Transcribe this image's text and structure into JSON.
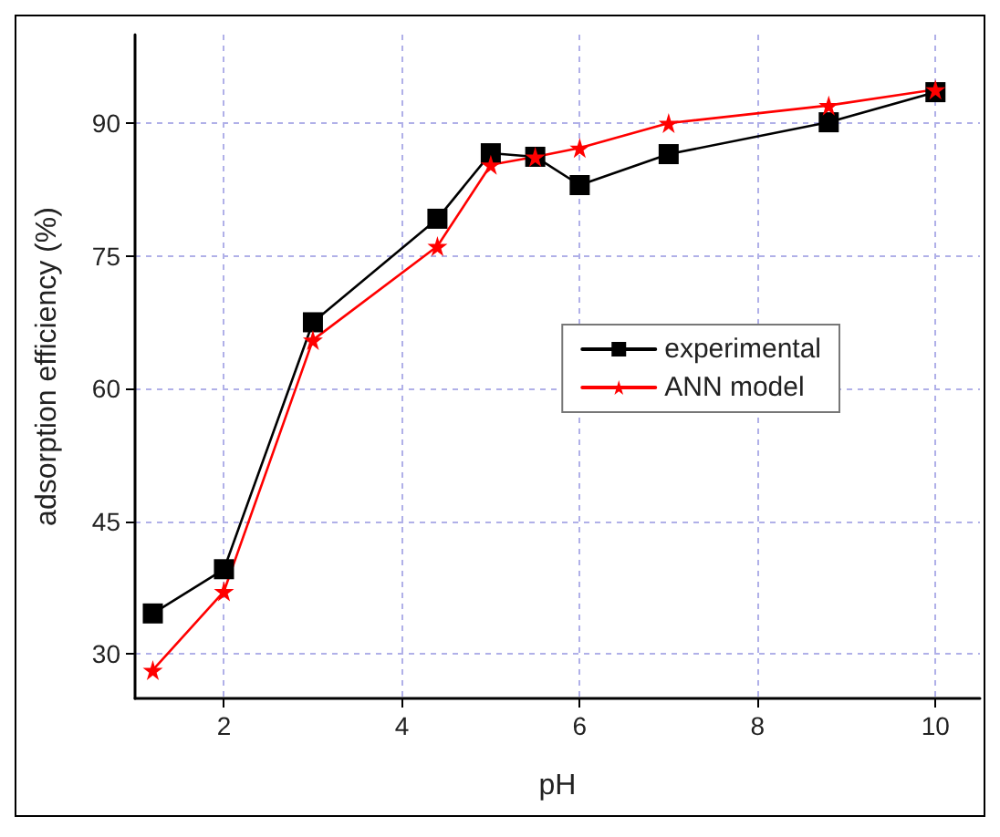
{
  "chart_data": {
    "type": "line",
    "xlabel": "pH",
    "ylabel": "adsorption efficiency (%)",
    "xlim": [
      1,
      10.5
    ],
    "xticks": [
      2,
      4,
      6,
      8,
      10
    ],
    "ylim": [
      25,
      100
    ],
    "yticks": [
      30,
      45,
      60,
      75,
      90
    ],
    "grid": true,
    "legend": "right",
    "line_style": "solid",
    "series": [
      {
        "name": "experimental",
        "color": "#000000",
        "marker": "square",
        "x": [
          1.2,
          2,
          3,
          4.4,
          5,
          5.5,
          6,
          7,
          8.8,
          10
        ],
        "values": [
          34.6,
          39.6,
          67.5,
          79.2,
          86.6,
          86.2,
          83.0,
          86.5,
          90.1,
          93.5
        ]
      },
      {
        "name": "ANN model",
        "color": "#ff0000",
        "marker": "star",
        "x": [
          1.2,
          2,
          3,
          4.4,
          5,
          5.5,
          6,
          7,
          8.8,
          10
        ],
        "values": [
          28.2,
          37.1,
          65.5,
          76.1,
          85.3,
          86.2,
          87.2,
          90.0,
          92.0,
          93.8
        ]
      }
    ]
  }
}
